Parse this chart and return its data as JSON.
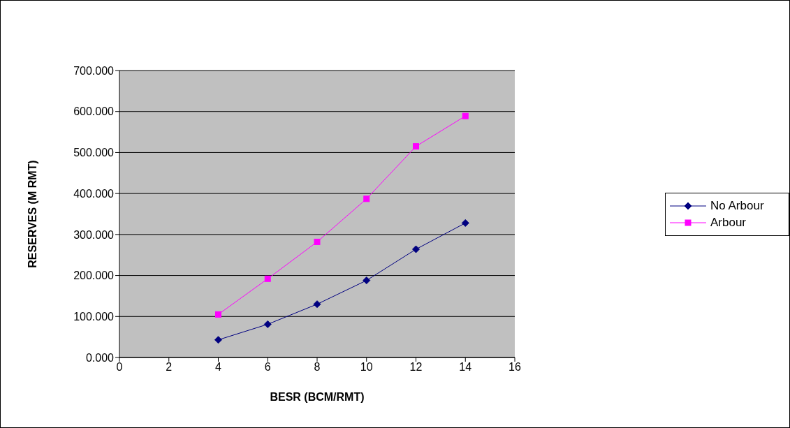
{
  "chart_data": {
    "type": "line",
    "xlabel": "BESR (BCM/RMT)",
    "ylabel": "RESERVES (M RMT)",
    "xlim": [
      0,
      16
    ],
    "xticks": [
      0,
      2,
      4,
      6,
      8,
      10,
      12,
      14,
      16
    ],
    "ylim": [
      0,
      700
    ],
    "yticks": [
      {
        "value": 0,
        "label": "0.000"
      },
      {
        "value": 100,
        "label": "100.000"
      },
      {
        "value": 200,
        "label": "200.000"
      },
      {
        "value": 300,
        "label": "300.000"
      },
      {
        "value": 400,
        "label": "400.000"
      },
      {
        "value": 500,
        "label": "500.000"
      },
      {
        "value": 600,
        "label": "600.000"
      },
      {
        "value": 700,
        "label": "700.000"
      }
    ],
    "grid": "y",
    "legend": "right",
    "line_style": "solid",
    "x": [
      4,
      6,
      8,
      10,
      12,
      14
    ],
    "series": [
      {
        "name": "No Arbour",
        "color": "#000080",
        "marker": "diamond",
        "values": [
          43,
          81,
          130,
          188,
          264,
          328
        ]
      },
      {
        "name": "Arbour",
        "color": "#ff00ff",
        "marker": "square",
        "values": [
          105,
          192,
          282,
          387,
          515,
          589
        ]
      }
    ]
  }
}
